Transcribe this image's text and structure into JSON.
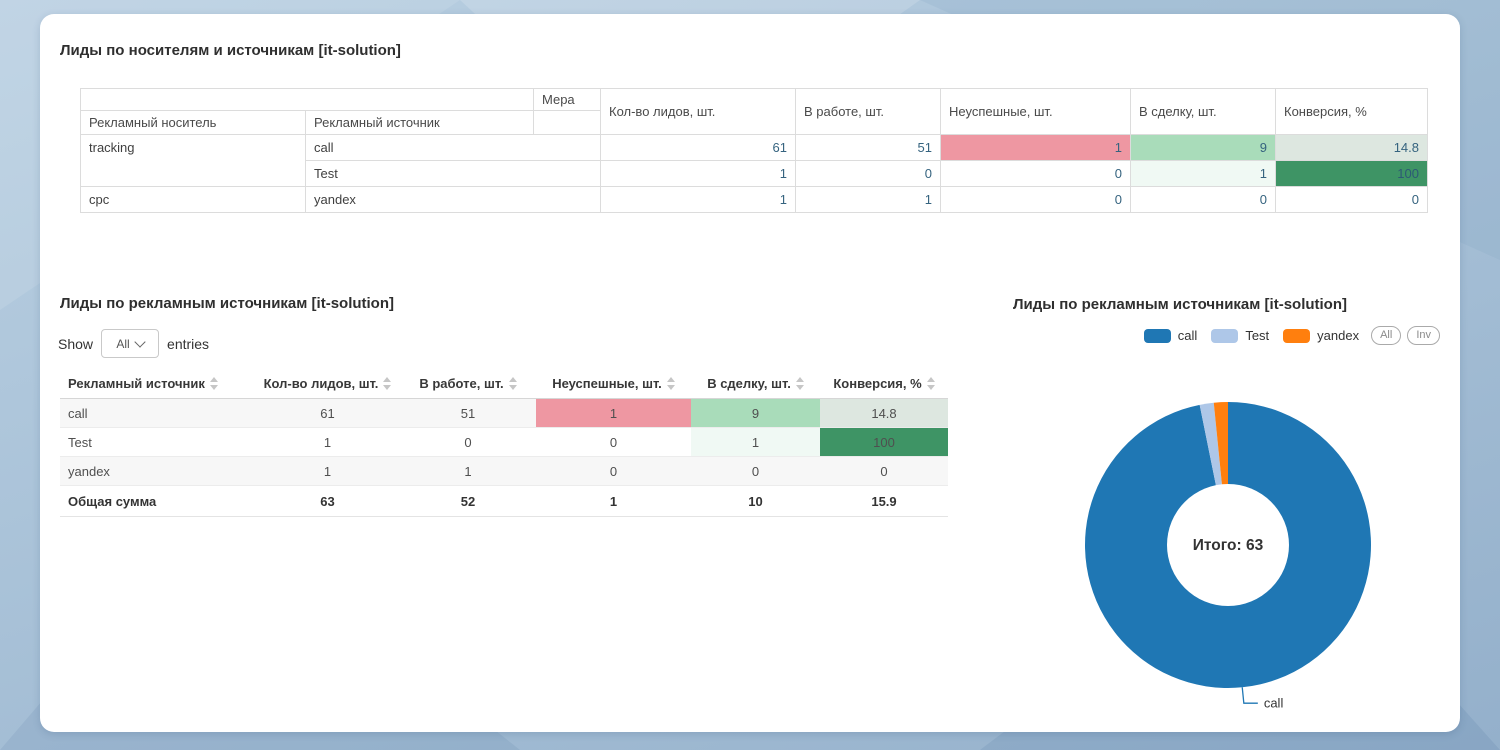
{
  "section1": {
    "title": "Лиды по носителям и источникам [it-solution]",
    "table": {
      "carrier_header": "Рекламный носитель",
      "source_header": "Рекламный источник",
      "measure_header": "Мера",
      "measures": [
        "Кол-во лидов, шт.",
        "В работе, шт.",
        "Неуспешные, шт.",
        "В сделку, шт.",
        "Конверсия, %"
      ],
      "rows": [
        {
          "carrier": "tracking",
          "source": "call",
          "values": [
            "61",
            "51",
            "1",
            "9",
            "14.8"
          ]
        },
        {
          "carrier": "",
          "source": "Test",
          "values": [
            "1",
            "0",
            "0",
            "1",
            "100"
          ]
        },
        {
          "carrier": "cpc",
          "source": "yandex",
          "values": [
            "1",
            "1",
            "0",
            "0",
            "0"
          ]
        }
      ]
    }
  },
  "section2": {
    "title": "Лиды по рекламным источникам [it-solution]",
    "show_label": "Show",
    "entries_label": "entries",
    "page_length_value": "All",
    "table": {
      "headers": [
        "Рекламный источник",
        "Кол-во лидов, шт.",
        "В работе, шт.",
        "Неуспешные, шт.",
        "В сделку, шт.",
        "Конверсия, %"
      ],
      "rows": [
        {
          "source": "call",
          "values": [
            "61",
            "51",
            "1",
            "9",
            "14.8"
          ]
        },
        {
          "source": "Test",
          "values": [
            "1",
            "0",
            "0",
            "1",
            "100"
          ]
        },
        {
          "source": "yandex",
          "values": [
            "1",
            "1",
            "0",
            "0",
            "0"
          ]
        }
      ],
      "footer": {
        "label": "Общая сумма",
        "values": [
          "63",
          "52",
          "1",
          "10",
          "15.9"
        ]
      }
    }
  },
  "chart": {
    "title": "Лиды по рекламным источникам [it-solution]",
    "buttons": [
      "All",
      "Inv"
    ],
    "center_label": "Итого: 63",
    "callout_label": "call"
  },
  "chart_data": {
    "type": "pie",
    "donut": true,
    "title": "Лиды по рекламным источникам [it-solution]",
    "categories": [
      "call",
      "Test",
      "yandex"
    ],
    "values": [
      61,
      1,
      1
    ],
    "total": 63,
    "total_label": "Итого: 63",
    "colors": [
      "#1f77b4",
      "#aec7e8",
      "#ff7f0e"
    ],
    "legend_position": "top-right",
    "callouts": [
      "call"
    ]
  },
  "colors": {
    "cell_negative": "#ee97a2",
    "cell_positive": "#a9dcba",
    "cell_conversion": "#dde7e0",
    "cell_positive_light": "#f0f9f4",
    "cell_conversion_full": "#3e9465",
    "pivot_number_text": "#35637f"
  },
  "icons": {
    "sort": "▲▼",
    "chevron_down": "⌄"
  }
}
